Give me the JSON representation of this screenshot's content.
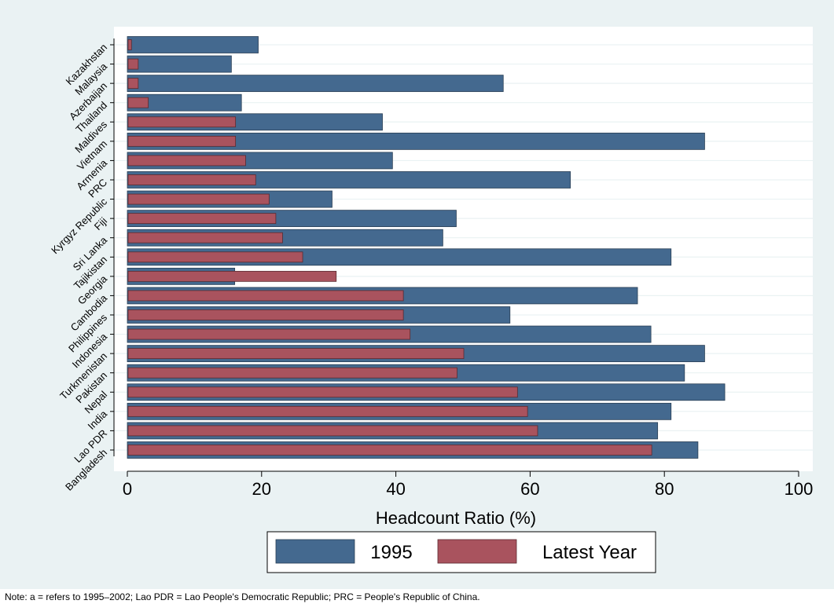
{
  "chart_data": {
    "type": "bar",
    "orientation": "horizontal",
    "categories": [
      "Kazakhstan",
      "Malaysia",
      "Azerbaijan",
      "Thailand",
      "Maldives",
      "Vietnam",
      "Armenia",
      "PRC",
      "Kyrgyz Republic",
      "Fiji",
      "Sri Lanka",
      "Tajikistan",
      "Georgia",
      "Cambodia",
      "Philippines",
      "Indonesia",
      "Turkmenistan",
      "Pakistan",
      "Nepal",
      "India",
      "Lao PDR",
      "Bangladesh"
    ],
    "series": [
      {
        "name": "1995",
        "color": "#44698f",
        "values": [
          19.5,
          15.5,
          56,
          17,
          38,
          86,
          39.5,
          66,
          30.5,
          49,
          47,
          81,
          16,
          76,
          57,
          78,
          86,
          83,
          89,
          81,
          79,
          85
        ]
      },
      {
        "name": "Latest Year",
        "color": "#a9535e",
        "values": [
          0.5,
          1.5,
          1.5,
          3,
          16,
          16,
          17.5,
          19,
          21,
          22,
          23,
          26,
          31,
          41,
          41,
          42,
          50,
          49,
          58,
          59.5,
          61,
          78
        ]
      }
    ],
    "xlabel": "Headcount Ratio (%)",
    "xlim": [
      0,
      100
    ],
    "xticks": [
      0,
      20,
      40,
      60,
      80,
      100
    ],
    "grid": true,
    "legend_position": "bottom"
  },
  "note": "Note: a = refers to 1995–2002; Lao PDR = Lao People's Democratic Republic; PRC =  People's Republic of China.",
  "colors": {
    "background": "#eaf2f3",
    "plot": "#ffffff",
    "grid": "#eaf2f3"
  }
}
